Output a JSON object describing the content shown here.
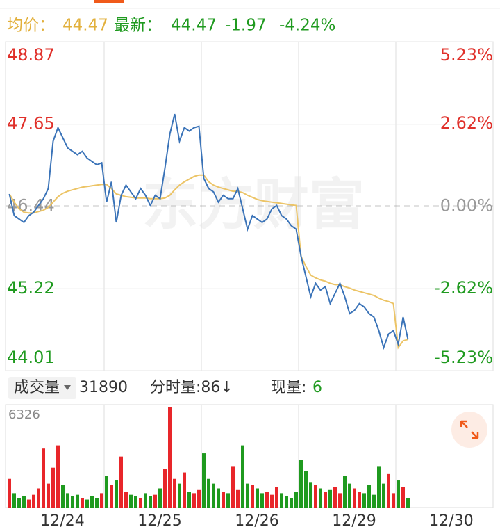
{
  "header": {
    "avg_label": "均价：",
    "avg_value": "44.47",
    "last_label": "最新：",
    "last_value": "44.47",
    "change": "-1.97",
    "change_pct": "-4.24%"
  },
  "watermark": "东方财富",
  "volume_bar": {
    "label": "成交量",
    "total": "31890",
    "tick_label": "分时量:86↓",
    "current_label": "现量:",
    "current_value": "6"
  },
  "chart_data": {
    "type": "line",
    "categories": [
      "12/24",
      "12/25",
      "12/26",
      "12/29",
      "12/30"
    ],
    "ylim": [
      44.01,
      48.87
    ],
    "yticks": [
      44.01,
      45.22,
      46.44,
      47.65,
      48.87
    ],
    "y2lim": [
      -5.23,
      5.23
    ],
    "y2ticks": [
      {
        "value": -5.23,
        "label": "-5.23%"
      },
      {
        "value": -2.62,
        "label": "-2.62%"
      },
      {
        "value": 0,
        "label": "0.00%"
      },
      {
        "value": 2.62,
        "label": "2.62%"
      },
      {
        "value": 5.23,
        "label": "5.23%"
      }
    ],
    "grid": true,
    "series": [
      {
        "color": "#3a73b8",
        "values": [
          [
            46.62,
            46.3,
            46.25,
            46.2,
            46.3,
            46.35,
            46.45,
            46.55,
            46.7,
            47.4,
            47.6,
            47.45,
            47.3,
            47.25,
            47.2,
            47.25,
            47.15,
            47.1,
            47.05,
            47.08
          ],
          [
            46.5,
            46.8,
            46.2,
            46.6,
            46.75,
            46.65,
            46.55,
            46.7,
            46.6,
            46.45,
            46.6,
            46.55,
            47.0,
            47.5,
            47.8,
            47.4,
            47.6,
            47.55,
            47.6,
            47.62
          ],
          [
            46.85,
            46.7,
            46.65,
            46.5,
            46.6,
            46.55,
            46.55,
            46.7,
            46.4,
            46.1,
            46.3,
            46.25,
            46.2,
            46.25,
            46.4,
            46.45,
            46.3,
            46.25,
            46.15,
            46.1
          ],
          [
            45.7,
            45.4,
            45.1,
            45.3,
            45.2,
            45.25,
            45.0,
            45.15,
            45.3,
            45.1,
            44.85,
            44.9,
            45.0,
            44.95,
            44.85,
            44.8,
            44.6,
            44.35,
            44.55,
            44.6
          ],
          [
            44.4,
            44.8,
            44.47
          ]
        ]
      },
      {
        "color": "#ecc466",
        "values": [
          [
            46.62,
            46.5,
            46.4,
            46.35,
            46.34,
            46.34,
            46.36,
            46.38,
            46.42,
            46.5,
            46.58,
            46.63,
            46.66,
            46.68,
            46.7,
            46.72,
            46.73,
            46.74,
            46.75,
            46.76
          ],
          [
            46.76,
            46.7,
            46.62,
            46.6,
            46.58,
            46.57,
            46.56,
            46.56,
            46.56,
            46.55,
            46.55,
            46.55,
            46.56,
            46.6,
            46.68,
            46.75,
            46.8,
            46.84,
            46.88,
            46.9
          ],
          [
            46.9,
            46.8,
            46.75,
            46.72,
            46.7,
            46.68,
            46.66,
            46.66,
            46.64,
            46.6,
            46.57,
            46.54,
            46.52,
            46.51,
            46.5,
            46.49,
            46.48,
            46.47,
            46.46,
            46.45
          ],
          [
            45.7,
            45.55,
            45.42,
            45.38,
            45.35,
            45.33,
            45.3,
            45.28,
            45.28,
            45.25,
            45.23,
            45.2,
            45.18,
            45.16,
            45.14,
            45.12,
            45.08,
            45.05,
            45.03,
            45.0
          ],
          [
            44.35,
            44.45,
            44.47
          ]
        ]
      }
    ],
    "volume": {
      "ylim": [
        0,
        6326
      ],
      "yticks": [
        6326
      ],
      "up_color": "#e8262a",
      "down_color": "#1f9a1f",
      "values": [
        [
          1800,
          900,
          600,
          700,
          500,
          800,
          1200,
          3700,
          1500,
          2500,
          3900,
          1400,
          900,
          700,
          800,
          600,
          500,
          700,
          600,
          900
        ],
        [
          2000,
          1400,
          1700,
          3200,
          1000,
          800,
          700,
          600,
          900,
          700,
          800,
          1200,
          2400,
          6326,
          1800,
          1500,
          2200,
          1000,
          900,
          1100
        ],
        [
          3400,
          1800,
          1500,
          1200,
          1000,
          900,
          2600,
          1100,
          3900,
          1500,
          1400,
          1200,
          900,
          1000,
          800,
          1300,
          900,
          700,
          600,
          1000
        ],
        [
          3000,
          2300,
          1600,
          1400,
          1200,
          1000,
          1100,
          1300,
          900,
          2000,
          1500,
          1200,
          1000,
          900,
          1400,
          800,
          2600,
          1500,
          2100,
          900
        ],
        [
          1700,
          1300,
          600
        ]
      ]
    }
  }
}
